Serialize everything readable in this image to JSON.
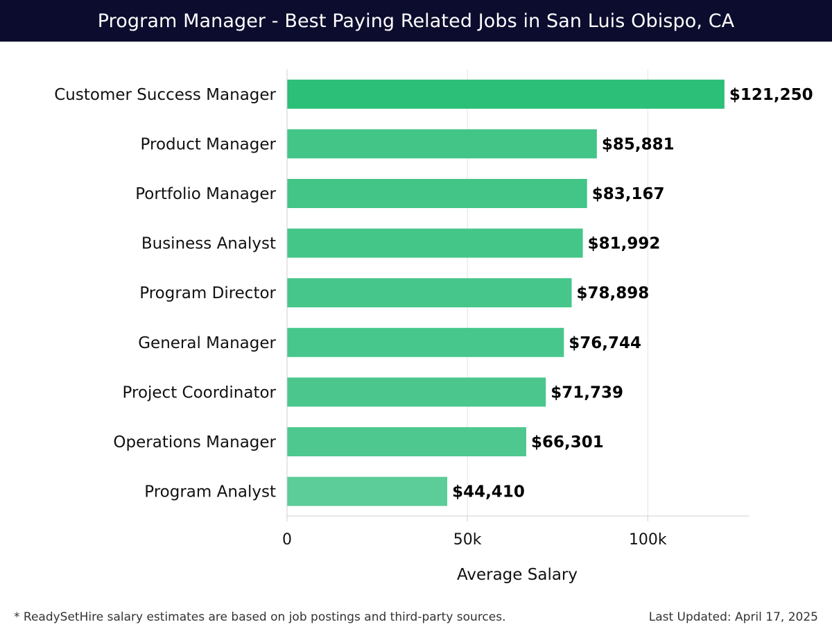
{
  "header": {
    "title": "Program Manager - Best Paying Related Jobs in San Luis Obispo, CA"
  },
  "chart_data": {
    "type": "bar",
    "orientation": "horizontal",
    "categories": [
      "Customer Success Manager",
      "Product Manager",
      "Portfolio Manager",
      "Business Analyst",
      "Program Director",
      "General Manager",
      "Project Coordinator",
      "Operations Manager",
      "Program Analyst"
    ],
    "values": [
      121250,
      85881,
      83167,
      81992,
      78898,
      76744,
      71739,
      66301,
      44410
    ],
    "value_labels": [
      "$121,250",
      "$85,881",
      "$83,167",
      "$81,992",
      "$78,898",
      "$76,744",
      "$71,739",
      "$66,301",
      "$44,410"
    ],
    "xlabel": "Average Salary",
    "ylabel": "",
    "xlim": [
      0,
      128000
    ],
    "xticks": [
      0,
      50000,
      100000
    ],
    "xtick_labels": [
      "0",
      "50k",
      "100k"
    ],
    "grid": "vertical",
    "bar_color_max": "#2bbf78",
    "bar_color_min": "#5ccc98"
  },
  "footer": {
    "note": "* ReadySetHire salary estimates are based on job postings and third-party sources.",
    "updated": "Last Updated: April 17, 2025"
  }
}
